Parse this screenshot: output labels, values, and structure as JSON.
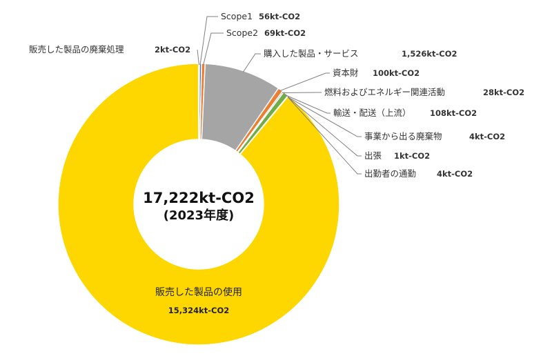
{
  "chart_data": {
    "type": "pie",
    "variant": "donut",
    "total_label": "17,222kt-CO2",
    "year_label": "(2023年度)",
    "slices": [
      {
        "name": "Scope1",
        "value": 56,
        "value_label": "56kt-CO2",
        "color": "#4472C4"
      },
      {
        "name": "Scope2",
        "value": 69,
        "value_label": "69kt-CO2",
        "color": "#ED7D31"
      },
      {
        "name": "購入した製品・サービス",
        "value": 1526,
        "value_label": "1,526kt-CO2",
        "color": "#A5A5A5"
      },
      {
        "name": "資本財",
        "value": 100,
        "value_label": "100kt-CO2",
        "color": "#ED7D31"
      },
      {
        "name": "燃料およびエネルギー関連活動",
        "value": 28,
        "value_label": "28kt-CO2",
        "color": "#A5A5A5"
      },
      {
        "name": "輸送・配送（上流）",
        "value": 108,
        "value_label": "108kt-CO2",
        "color": "#70AD47"
      },
      {
        "name": "事業から出る廃棄物",
        "value": 4,
        "value_label": "4kt-CO2",
        "color": "#4472C4"
      },
      {
        "name": "出張",
        "value": 1,
        "value_label": "1kt-CO2",
        "color": "#ED7D31"
      },
      {
        "name": "出勤者の通勤",
        "value": 4,
        "value_label": "4kt-CO2",
        "color": "#A5A5A5"
      },
      {
        "name": "販売した製品の使用",
        "value": 15324,
        "value_label": "15,324kt-CO2",
        "color": "#FFD700"
      },
      {
        "name": "販売した製品の廃棄処理",
        "value": 2,
        "value_label": "2kt-CO2",
        "color": "#5B9BD5"
      }
    ]
  }
}
